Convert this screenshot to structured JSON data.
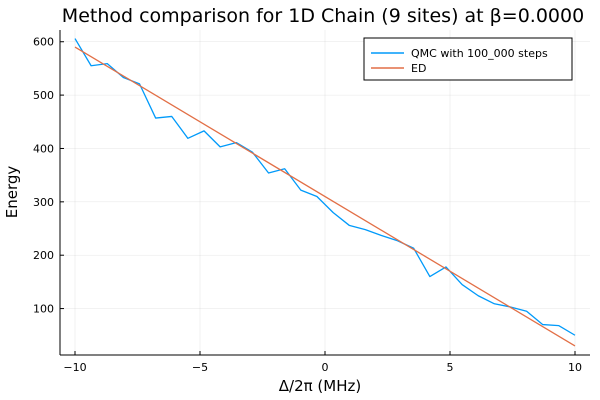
{
  "chart_data": {
    "type": "line",
    "title": "Method comparison for 1D Chain (9 sites) at β=0.0000",
    "xlabel": "Δ/2π (MHz)",
    "ylabel": "Energy",
    "xlim": [
      -10.6,
      10.6
    ],
    "ylim": [
      13,
      622
    ],
    "xticks": [
      -10,
      -5,
      0,
      5,
      10
    ],
    "xtick_labels": [
      "−10",
      "−5",
      "0",
      "5",
      "10"
    ],
    "yticks": [
      100,
      200,
      300,
      400,
      500,
      600
    ],
    "ytick_labels": [
      "100",
      "200",
      "300",
      "400",
      "500",
      "600"
    ],
    "grid": true,
    "legend_position": "top-right",
    "series": [
      {
        "name": "QMC with 100_000 steps",
        "color": "#009AFA",
        "x": [
          -10.0,
          -9.355,
          -8.71,
          -8.065,
          -7.419,
          -6.774,
          -6.129,
          -5.484,
          -4.839,
          -4.194,
          -3.548,
          -2.903,
          -2.258,
          -1.613,
          -0.968,
          -0.323,
          0.323,
          0.968,
          1.613,
          2.258,
          2.903,
          3.548,
          4.194,
          4.839,
          5.484,
          6.129,
          6.774,
          7.419,
          8.065,
          8.71,
          9.355,
          10.0
        ],
        "y": [
          606,
          555,
          559,
          533,
          521,
          457,
          460,
          419,
          433,
          403,
          411,
          393,
          354,
          362,
          322,
          310,
          280,
          256,
          248,
          237,
          227,
          213,
          160,
          178,
          145,
          124,
          109,
          103,
          95,
          70,
          68,
          50
        ]
      },
      {
        "name": "ED",
        "color": "#E26F46",
        "x": [
          -10.0,
          10.0
        ],
        "y": [
          590,
          30
        ]
      }
    ]
  }
}
